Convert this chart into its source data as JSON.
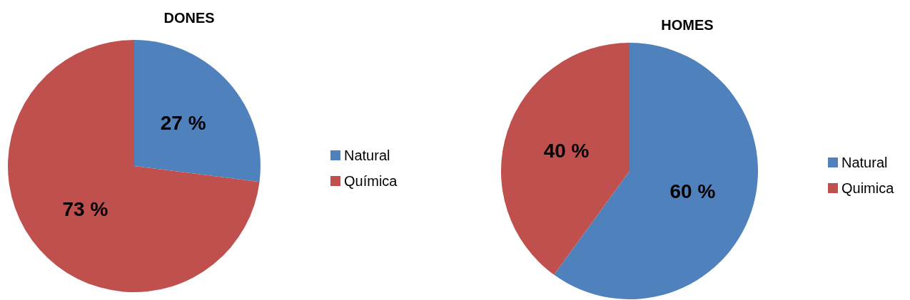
{
  "chart_data": [
    {
      "type": "pie",
      "title": "DONES",
      "categories": [
        "Natural",
        "Química"
      ],
      "values": [
        27,
        73
      ],
      "colors": [
        "#4f81bd",
        "#c0504d"
      ],
      "value_labels": [
        "27 %",
        "73 %"
      ],
      "legend": "right"
    },
    {
      "type": "pie",
      "title": "HOMES",
      "categories": [
        "Natural",
        "Quimica"
      ],
      "values": [
        60,
        40
      ],
      "colors": [
        "#4f81bd",
        "#c0504d"
      ],
      "value_labels": [
        "60 %",
        "40 %"
      ],
      "legend": "right"
    }
  ]
}
